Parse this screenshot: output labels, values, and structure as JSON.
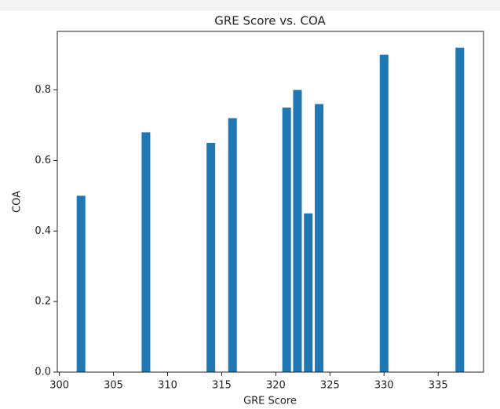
{
  "chart_data": {
    "type": "bar",
    "title": "GRE Score vs. COA",
    "x_label": "GRE Score",
    "y_label": "COA",
    "x": [
      302,
      308,
      314,
      316,
      321,
      322,
      323,
      324,
      330,
      337
    ],
    "values": [
      0.5,
      0.68,
      0.65,
      0.72,
      0.75,
      0.8,
      0.45,
      0.76,
      0.9,
      0.92
    ],
    "color": "#1f77b4",
    "xlim": [
      299.81,
      339.19
    ],
    "xticks": [
      300,
      305,
      310,
      315,
      320,
      325,
      330,
      335
    ],
    "ylim": [
      0,
      0.966
    ],
    "yticks": [
      {
        "value": 0,
        "label": "0.0"
      },
      0.2,
      0.4,
      0.6,
      0.8
    ]
  }
}
